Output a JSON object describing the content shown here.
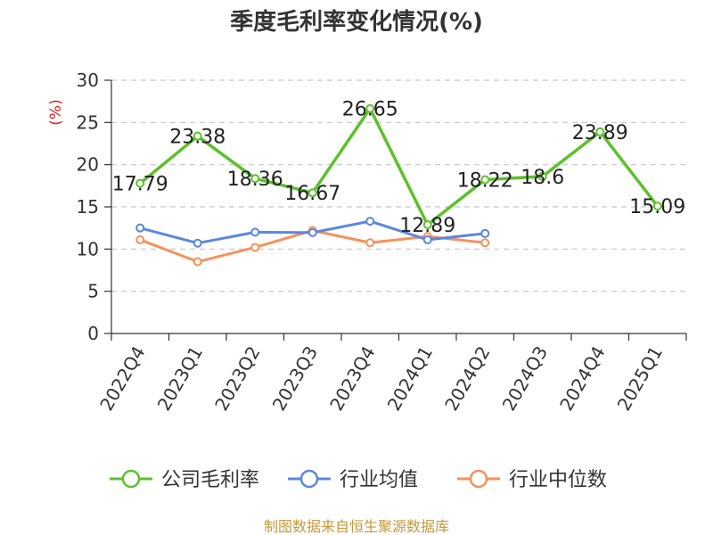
{
  "chart_data": {
    "type": "line",
    "title": "季度毛利率变化情况(%)",
    "ylabel": "(%)",
    "xlabel": "",
    "ylim": [
      0,
      30
    ],
    "yticks": [
      0,
      5,
      10,
      15,
      20,
      25,
      30
    ],
    "grid": true,
    "legend_position": "bottom",
    "categories": [
      "2022Q4",
      "2023Q1",
      "2023Q2",
      "2023Q3",
      "2023Q4",
      "2024Q1",
      "2024Q2",
      "2024Q3",
      "2024Q4",
      "2025Q1"
    ],
    "series": [
      {
        "name": "公司毛利率",
        "color": "#5cc12a",
        "values": [
          17.79,
          23.38,
          18.36,
          16.67,
          26.65,
          12.89,
          18.22,
          18.6,
          23.89,
          15.09
        ],
        "labels": [
          "17.79",
          "23.38",
          "18.36",
          "16.67",
          "26.65",
          "12.89",
          "18.22",
          "18.6",
          "23.89",
          "15.09"
        ]
      },
      {
        "name": "行业均值",
        "color": "#5b87e0",
        "values": [
          12.5,
          10.7,
          12.0,
          11.95,
          13.3,
          11.1,
          11.85,
          null,
          null,
          null
        ]
      },
      {
        "name": "行业中位数",
        "color": "#f6915c",
        "values": [
          11.1,
          8.5,
          10.2,
          12.2,
          10.75,
          11.5,
          10.75,
          null,
          null,
          null
        ]
      }
    ],
    "source": "制图数据来自恒生聚源数据库",
    "source_color": "#c6993b",
    "unit_color": "#d9201d"
  }
}
